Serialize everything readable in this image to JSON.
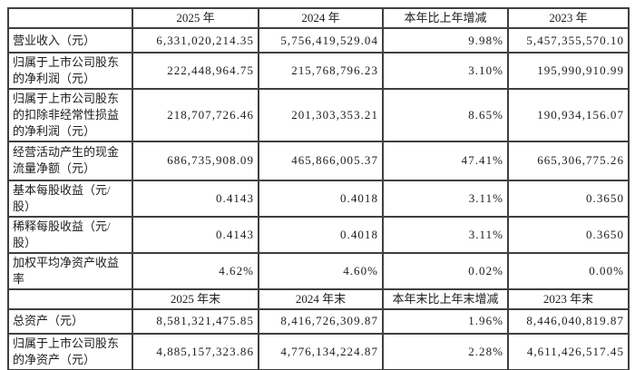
{
  "colors": {
    "border": "#3f3f3f",
    "header_background": "#d7d7d7",
    "label_background": "#e2e2e2",
    "cell_background": "#ffffff",
    "text": "#1c1c1c"
  },
  "table": {
    "period_header": {
      "metric": "",
      "y2025": "2025 年",
      "y2024": "2024 年",
      "change": "本年比上年增减",
      "y2023": "2023 年"
    },
    "period_rows": [
      {
        "metric": "营业收入（元）",
        "y2025": "6,331,020,214.35",
        "y2024": "5,756,419,529.04",
        "change": "9.98%",
        "y2023": "5,457,355,570.10"
      },
      {
        "metric": "归属于上市公司股东的净利润（元）",
        "y2025": "222,448,964.75",
        "y2024": "215,768,796.23",
        "change": "3.10%",
        "y2023": "195,990,910.99"
      },
      {
        "metric": "归属于上市公司股东的扣除非经常性损益的净利润（元）",
        "y2025": "218,707,726.46",
        "y2024": "201,303,353.21",
        "change": "8.65%",
        "y2023": "190,934,156.07"
      },
      {
        "metric": "经营活动产生的现金流量净额（元）",
        "y2025": "686,735,908.09",
        "y2024": "465,866,005.37",
        "change": "47.41%",
        "y2023": "665,306,775.26"
      },
      {
        "metric": "基本每股收益（元/股）",
        "y2025": "0.4143",
        "y2024": "0.4018",
        "change": "3.11%",
        "y2023": "0.3650"
      },
      {
        "metric": "稀释每股收益（元/股）",
        "y2025": "0.4143",
        "y2024": "0.4018",
        "change": "3.11%",
        "y2023": "0.3650"
      },
      {
        "metric": "加权平均净资产收益率",
        "y2025": "4.62%",
        "y2024": "4.60%",
        "change": "0.02%",
        "y2023": "0.00%"
      }
    ],
    "end_header": {
      "metric": "",
      "y2025": "2025 年末",
      "y2024": "2024 年末",
      "change": "本年末比上年末增减",
      "y2023": "2023 年末"
    },
    "end_rows": [
      {
        "metric": "总资产（元）",
        "y2025": "8,581,321,475.85",
        "y2024": "8,416,726,309.87",
        "change": "1.96%",
        "y2023": "8,446,040,819.87"
      },
      {
        "metric": "归属于上市公司股东的净资产（元）",
        "y2025": "4,885,157,323.86",
        "y2024": "4,776,134,224.87",
        "change": "2.28%",
        "y2023": "4,611,426,517.45"
      }
    ]
  }
}
